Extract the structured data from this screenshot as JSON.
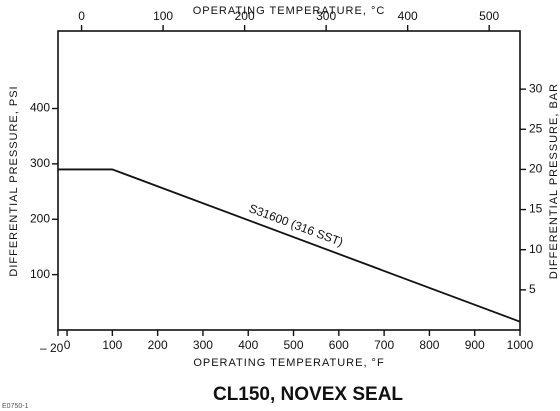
{
  "chart_data": {
    "type": "line",
    "title": "CL150, NOVEX SEAL",
    "figure_id": "E0750-1",
    "x_label": "OPERATING TEMPERATURE, °F",
    "x2_label": "OPERATING TEMPERATURE, °C",
    "y_label": "DIFFERENTIAL PRESSURE, PSI",
    "y2_label": "DIFFERENTIAL PRESSURE, BAR",
    "xlim": [
      -20,
      1000
    ],
    "xticks": [
      {
        "value": -20,
        "label": "– 20"
      },
      0,
      100,
      200,
      300,
      400,
      500,
      600,
      700,
      800,
      900,
      1000
    ],
    "x2lim": [
      -28.9,
      537.8
    ],
    "x2ticks": [
      0,
      100,
      200,
      300,
      400,
      500
    ],
    "ylim": [
      0,
      540
    ],
    "yticks": [
      100,
      200,
      300,
      400
    ],
    "y2lim": [
      0,
      37.24
    ],
    "y2ticks": [
      5,
      10,
      15,
      20,
      25,
      30
    ],
    "x": [
      -20,
      100,
      1000
    ],
    "series": [
      {
        "name": "S31600 (316 SST)",
        "color": "#111111",
        "values": [
          290,
          290,
          15
        ]
      }
    ]
  }
}
